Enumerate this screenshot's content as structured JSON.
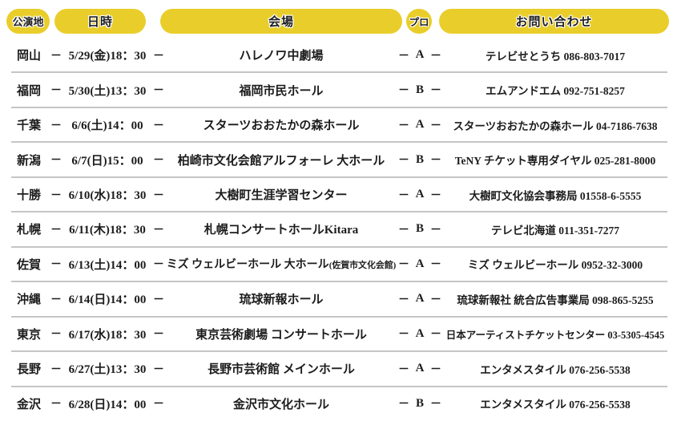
{
  "table": {
    "columns": [
      {
        "id": "location",
        "label": "公演地"
      },
      {
        "id": "datetime",
        "label": "日時"
      },
      {
        "id": "venue",
        "label": "会場"
      },
      {
        "id": "program",
        "label": "プロ"
      },
      {
        "id": "contact",
        "label": "お問い合わせ"
      }
    ],
    "dash": "－",
    "rows": [
      {
        "location": "岡山",
        "datetime": "5/29(金)18：30",
        "venue": "ハレノワ中劇場",
        "venue_note": "",
        "program": "A",
        "contact": "テレビせとうち 086-803-7017"
      },
      {
        "location": "福岡",
        "datetime": "5/30(土)13：30",
        "venue": "福岡市民ホール",
        "venue_note": "",
        "program": "B",
        "contact": "エムアンドエム 092-751-8257"
      },
      {
        "location": "千葉",
        "datetime": "6/6(土)14：00",
        "venue": "スターツおおたかの森ホール",
        "venue_note": "",
        "program": "A",
        "contact": "スターツおおたかの森ホール 04-7186-7638"
      },
      {
        "location": "新潟",
        "datetime": "6/7(日)15：00",
        "venue": "柏崎市文化会館アルフォーレ 大ホール",
        "venue_note": "",
        "program": "B",
        "contact": "TeNY チケット専用ダイヤル 025-281-8000"
      },
      {
        "location": "十勝",
        "datetime": "6/10(水)18：30",
        "venue": "大樹町生涯学習センター",
        "venue_note": "",
        "program": "A",
        "contact": "大樹町文化協会事務局 01558-6-5555"
      },
      {
        "location": "札幌",
        "datetime": "6/11(木)18：30",
        "venue": "札幌コンサートホールKitara",
        "venue_note": "",
        "program": "B",
        "contact": "テレビ北海道 011-351-7277"
      },
      {
        "location": "佐賀",
        "datetime": "6/13(土)14：00",
        "venue": "ミズ ウェルビーホール 大ホール",
        "venue_note": "(佐賀市文化会館)",
        "program": "A",
        "contact": "ミズ ウェルビーホール 0952-32-3000"
      },
      {
        "location": "沖縄",
        "datetime": "6/14(日)14：00",
        "venue": "琉球新報ホール",
        "venue_note": "",
        "program": "A",
        "contact": "琉球新報社 統合広告事業局 098-865-5255"
      },
      {
        "location": "東京",
        "datetime": "6/17(水)18：30",
        "venue": "東京芸術劇場 コンサートホール",
        "venue_note": "",
        "program": "A",
        "contact": "日本アーティストチケットセンター 03-5305-4545"
      },
      {
        "location": "長野",
        "datetime": "6/27(土)13：30",
        "venue": "長野市芸術館 メインホール",
        "venue_note": "",
        "program": "A",
        "contact": "エンタメスタイル 076-256-5538"
      },
      {
        "location": "金沢",
        "datetime": "6/28(日)14：00",
        "venue": "金沢市文化ホール",
        "venue_note": "",
        "program": "B",
        "contact": "エンタメスタイル 076-256-5538"
      }
    ]
  },
  "colors": {
    "header_pill": "#e9ce2b",
    "text": "#1c1c1c",
    "separator": "#c5c5c5",
    "background": "#ffffff"
  }
}
